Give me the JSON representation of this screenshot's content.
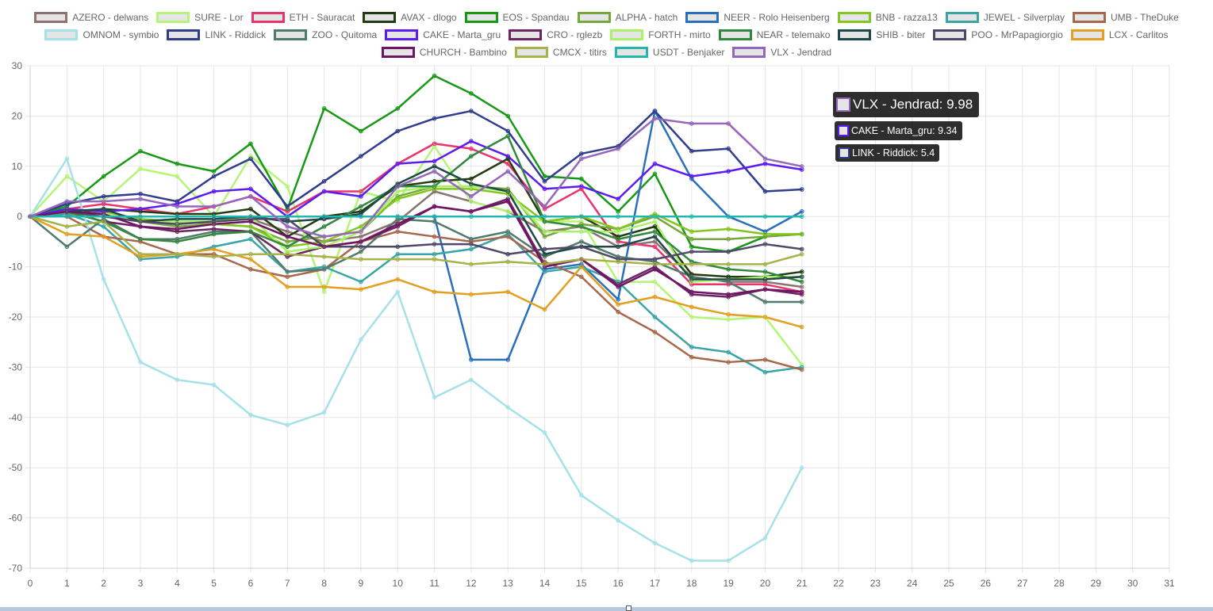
{
  "chart_data": {
    "type": "line",
    "title": "",
    "xlabel": "",
    "ylabel": "",
    "x": [
      0,
      1,
      2,
      3,
      4,
      5,
      6,
      7,
      8,
      9,
      10,
      11,
      12,
      13,
      14,
      15,
      16,
      17,
      18,
      19,
      20,
      21
    ],
    "xlim": [
      0,
      31
    ],
    "xticks": [
      "0",
      "1",
      "2",
      "3",
      "4",
      "5",
      "6",
      "7",
      "8",
      "9",
      "10",
      "11",
      "12",
      "13",
      "14",
      "15",
      "16",
      "17",
      "18",
      "19",
      "20",
      "21",
      "22",
      "23",
      "24",
      "25",
      "26",
      "27",
      "28",
      "29",
      "30",
      "31"
    ],
    "ylim": [
      -70,
      30
    ],
    "yticks": [
      "30",
      "20",
      "10",
      "0",
      "-10",
      "-20",
      "-30",
      "-40",
      "-50",
      "-60",
      "-70"
    ],
    "grid": true,
    "legend_position": "top",
    "series": [
      {
        "name": "AZERO - delwans",
        "color": "#8a7370",
        "values": [
          0,
          1.5,
          0.5,
          -1,
          -1.5,
          -1,
          -0.5,
          -3,
          -5,
          -4,
          -1,
          5,
          3,
          1,
          -3,
          -2,
          -6,
          -5,
          -12,
          -13,
          -13,
          -14
        ]
      },
      {
        "name": "SURE - Lor",
        "color": "#b5f576",
        "values": [
          0,
          8,
          3,
          9.5,
          8,
          0,
          12,
          6,
          -15,
          5,
          3,
          14,
          3,
          1,
          -1,
          -1,
          -13,
          -13,
          -20,
          -20.5,
          -20,
          -29.5
        ]
      },
      {
        "name": "ETH - Sauracat",
        "color": "#e8346c",
        "values": [
          0,
          1.5,
          2.5,
          1.5,
          0.5,
          2,
          4,
          1,
          5,
          5,
          10.5,
          14.5,
          13.5,
          10.5,
          1.5,
          5.5,
          -5,
          -6,
          -13.5,
          -13.5,
          -13.5,
          -15
        ]
      },
      {
        "name": "AVAX - dlogo",
        "color": "#223b10",
        "values": [
          0,
          0.5,
          1.5,
          1,
          0.5,
          0.5,
          1.5,
          -4,
          0,
          1,
          6,
          7,
          7.5,
          11.5,
          -1,
          0,
          -4,
          -2,
          -11.5,
          -12,
          -12,
          -11
        ]
      },
      {
        "name": "EOS - Spandau",
        "color": "#179914",
        "values": [
          0,
          2,
          8,
          13,
          10.5,
          9,
          14.5,
          1.5,
          21.5,
          17,
          21.5,
          28,
          24.5,
          20,
          8,
          7.5,
          1,
          8.5,
          -6,
          -7,
          -4,
          -3.5
        ]
      },
      {
        "name": "ALPHA - hatch",
        "color": "#76a73c",
        "values": [
          0,
          0.5,
          0,
          -1,
          -2,
          -1.5,
          -2,
          -5,
          -4,
          -3,
          4,
          6,
          6,
          5.5,
          -4,
          -1.5,
          -2.5,
          0,
          -4.5,
          -4.5,
          -4,
          -3.5
        ]
      },
      {
        "name": "NEER - Rolo Heisenberg",
        "color": "#2a6fbd",
        "values": [
          0,
          0,
          0,
          0,
          0,
          0,
          0,
          0,
          0,
          0,
          0,
          0,
          -28.5,
          -28.5,
          -10.5,
          -9.5,
          -16.5,
          21,
          7.5,
          0,
          -3,
          1
        ]
      },
      {
        "name": "BNB - razza13",
        "color": "#82c61e",
        "values": [
          0,
          1.5,
          1,
          -0.5,
          -1,
          -1.5,
          -2,
          -6,
          -5,
          -2,
          3.5,
          5.5,
          5.5,
          4.5,
          -1,
          0,
          -2.5,
          0.5,
          -3,
          -2.5,
          -3.5,
          -3.5
        ]
      },
      {
        "name": "JEWEL - Silverplay",
        "color": "#38a6a6",
        "values": [
          0,
          0.5,
          -2,
          -8.5,
          -8,
          -6,
          -4.5,
          -11,
          -10,
          -13,
          -7.5,
          -7.5,
          -6.5,
          -3.5,
          -11,
          -10,
          -13,
          -20,
          -26,
          -27,
          -31,
          -30
        ]
      },
      {
        "name": "UMB - TheDuke",
        "color": "#a8674a",
        "values": [
          0,
          0,
          -4,
          -5,
          -7.5,
          -7.5,
          -10.5,
          -12,
          -10.5,
          -5,
          -3,
          -4,
          -5,
          -4,
          -9,
          -12,
          -19,
          -23,
          -28,
          -29,
          -28.5,
          -30.5
        ]
      },
      {
        "name": "OMNOM - symbio",
        "color": "#a5e1e8",
        "values": [
          0,
          11.5,
          -12.5,
          -29,
          -32.5,
          -33.5,
          -39.5,
          -41.5,
          -39,
          -24.5,
          -15,
          -36,
          -32.5,
          -38,
          -43,
          -55.5,
          -60.5,
          -65,
          -68.5,
          -68.5,
          -64,
          -50
        ]
      },
      {
        "name": "LINK - Riddick",
        "color": "#303c8c",
        "values": [
          0,
          2.5,
          4,
          4.5,
          3,
          8,
          11.5,
          2,
          7,
          12,
          17,
          19.5,
          21,
          17,
          7,
          12.5,
          14,
          21,
          13,
          13.5,
          5,
          5.4
        ]
      },
      {
        "name": "ZOO - Quitoma",
        "color": "#517b6c",
        "values": [
          0,
          -6,
          -0.5,
          -4.5,
          -4.5,
          -3,
          -3,
          -11,
          -10.5,
          -7,
          -0.5,
          -1,
          -4.5,
          -3,
          -8,
          -5,
          -8,
          -9,
          -12,
          -13,
          -17,
          -17
        ]
      },
      {
        "name": "CAKE - Marta_gru",
        "color": "#5b1cf2",
        "values": [
          0,
          1.5,
          1,
          1.5,
          2.5,
          5,
          5.5,
          0,
          5,
          4,
          10.5,
          11,
          15,
          12,
          5.5,
          6,
          3.5,
          10.5,
          8,
          9,
          10.5,
          9.34
        ]
      },
      {
        "name": "CRO - rglezb",
        "color": "#6e2463",
        "values": [
          0,
          1,
          -1,
          -2,
          -3,
          -2.5,
          -3,
          -8,
          -6,
          -5,
          -2,
          2,
          1,
          3.5,
          -9.5,
          -8.5,
          -13.5,
          -10,
          -15.5,
          -16,
          -14.5,
          -15.5
        ]
      },
      {
        "name": "FORTH - mirto",
        "color": "#a9f268",
        "values": [
          0,
          1,
          0.5,
          -1,
          -1,
          -1,
          0,
          -7,
          -6,
          -3,
          5,
          6,
          6,
          5,
          -3,
          -3,
          -3,
          -1,
          -13,
          -12.5,
          -12,
          -12
        ]
      },
      {
        "name": "NEAR - telemako",
        "color": "#30893d",
        "values": [
          0,
          1,
          -1,
          -4.5,
          -5,
          -3.5,
          -3,
          -6,
          -2,
          2,
          6,
          6,
          12,
          16,
          -1,
          -2,
          -4.5,
          -3,
          -9,
          -10.5,
          -11,
          -13
        ]
      },
      {
        "name": "SHIB - biter",
        "color": "#1f4848",
        "values": [
          0,
          1,
          1.5,
          -1,
          -0.5,
          -0.5,
          0,
          -1,
          -0.5,
          0.5,
          6.5,
          10,
          6.5,
          5,
          -7.5,
          -6,
          -6,
          -4,
          -12.5,
          -12.5,
          -12.5,
          -12
        ]
      },
      {
        "name": "POO - MrPapagiorgio",
        "color": "#4f4868",
        "values": [
          0,
          1,
          0,
          -1,
          -1.5,
          -1,
          -0.5,
          -0.5,
          -6,
          -6,
          -6,
          -5.5,
          -5.5,
          -7.5,
          -6.5,
          -6,
          -8.5,
          -8.5,
          -7,
          -7,
          -5.5,
          -6.5
        ]
      },
      {
        "name": "LCX - Carlitos",
        "color": "#e29f20",
        "values": [
          0,
          -3.5,
          -4,
          -8,
          -7.5,
          -6.5,
          -8.5,
          -14,
          -14,
          -14.5,
          -12.5,
          -15,
          -15.5,
          -15,
          -18.5,
          -10,
          -17.5,
          -16,
          -18,
          -19.5,
          -20,
          -22
        ]
      },
      {
        "name": "CHURCH - Bambino",
        "color": "#6e1663",
        "values": [
          0,
          1,
          0.5,
          -2,
          -2.5,
          -1.5,
          -1,
          -4,
          -6,
          -5,
          -1.5,
          2,
          1,
          3,
          -10,
          -8.5,
          -14,
          -10.5,
          -15,
          -15.5,
          -14.5,
          -15
        ]
      },
      {
        "name": "CMCX - titirs",
        "color": "#a8b24a",
        "values": [
          0,
          -2,
          -1,
          -7.5,
          -7.5,
          -8,
          -7.5,
          -7.5,
          -8,
          -8.5,
          -8.5,
          -8.5,
          -9.5,
          -9,
          -9.5,
          -8.5,
          -9,
          -9.5,
          -9.5,
          -9.5,
          -9.5,
          -7.5
        ]
      },
      {
        "name": "USDT - Benjaker",
        "color": "#22b8b0",
        "values": [
          0,
          0,
          0,
          0,
          0,
          0,
          0,
          0,
          0,
          0,
          0,
          0,
          0,
          0,
          0,
          0,
          0,
          0,
          0,
          0,
          0,
          0
        ]
      },
      {
        "name": "VLX - Jendrad",
        "color": "#9467bd",
        "values": [
          0,
          3,
          3,
          3.5,
          2,
          2,
          4,
          -2,
          -4,
          -3,
          6,
          9,
          4,
          9,
          2,
          11.5,
          13.5,
          19.5,
          18.5,
          18.5,
          11.5,
          9.98
        ]
      }
    ],
    "tooltip": [
      {
        "series": "VLX - Jendrad",
        "text": "VLX - Jendrad: 9.98"
      },
      {
        "series": "CAKE - Marta_gru",
        "text": "CAKE - Marta_gru: 9.34"
      },
      {
        "series": "LINK - Riddick",
        "text": "LINK - Riddick: 5.4"
      }
    ]
  }
}
